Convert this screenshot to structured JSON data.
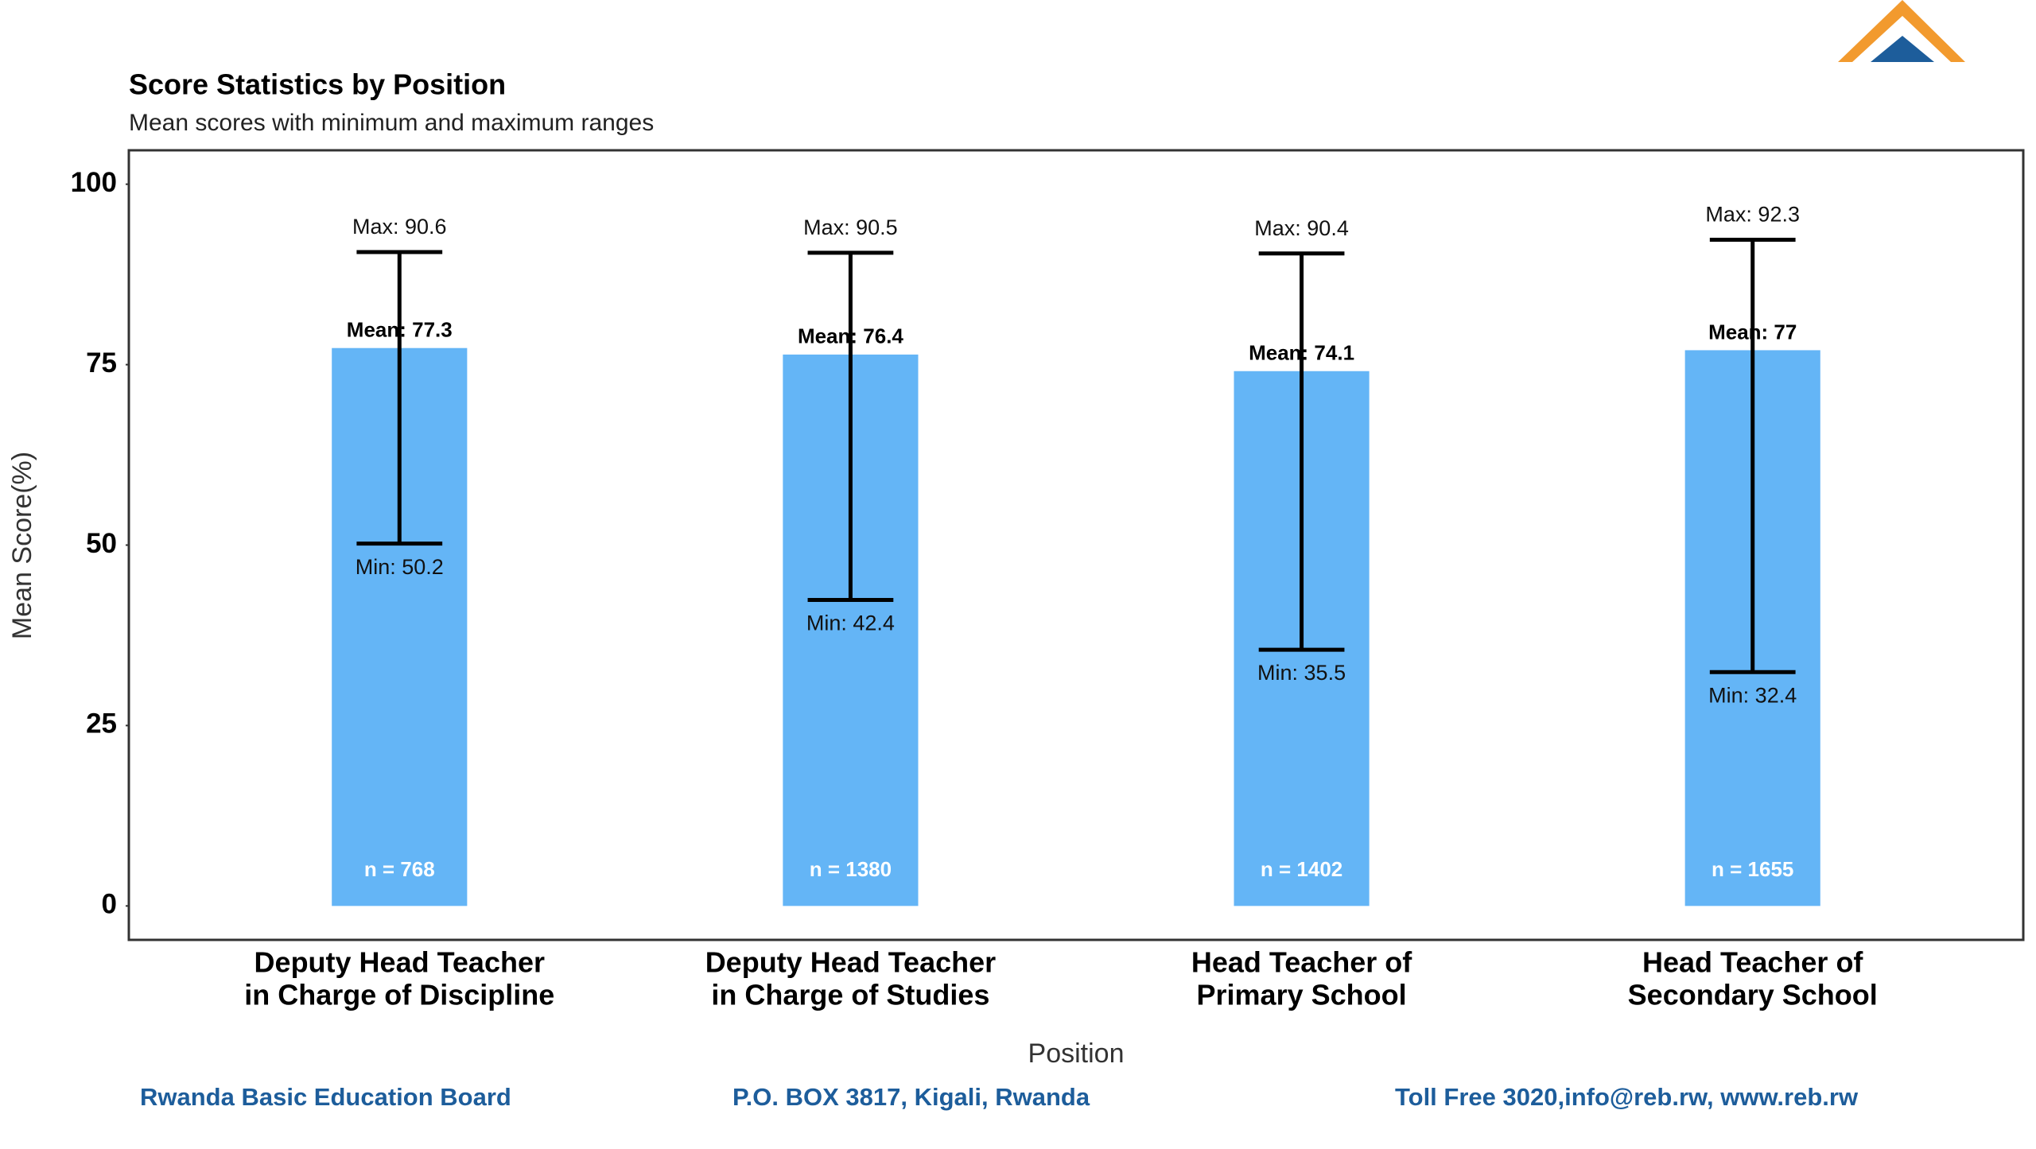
{
  "chart_data": {
    "type": "bar",
    "title": "Score Statistics by Position",
    "subtitle": "Mean scores with minimum and maximum ranges",
    "x_label": "Position",
    "y_label": "Mean Score(%)",
    "categories": [
      [
        "Deputy Head Teacher",
        "in Charge of Discipline"
      ],
      [
        "Deputy Head Teacher",
        "in Charge of Studies"
      ],
      [
        "Head Teacher of",
        "Primary School"
      ],
      [
        "Head Teacher of",
        "Secondary School"
      ]
    ],
    "values": [
      77.3,
      76.4,
      74.1,
      77
    ],
    "value_labels": [
      "Mean: 77.3",
      "Mean: 76.4",
      "Mean: 74.1",
      "Mean: 77"
    ],
    "min": [
      50.2,
      42.4,
      35.5,
      32.4
    ],
    "min_labels": [
      "Min: 50.2",
      "Min: 42.4",
      "Min: 35.5",
      "Min: 32.4"
    ],
    "max": [
      90.6,
      90.5,
      90.4,
      92.3
    ],
    "max_labels": [
      "Max: 90.6",
      "Max: 90.5",
      "Max: 90.4",
      "Max: 92.3"
    ],
    "counts": [
      768,
      1380,
      1402,
      1655
    ],
    "count_labels": [
      "n = 768",
      "n = 1380",
      "n = 1402",
      "n = 1655"
    ],
    "color": "#64b5f6",
    "ylim": [
      -4.7,
      104.7
    ],
    "yticks": [
      0,
      25,
      50,
      75,
      100
    ],
    "grid": false
  },
  "footer": {
    "organization": "Rwanda Basic Education Board",
    "address": "P.O. BOX 3817, Kigali, Rwanda",
    "contact": "Toll Free 3020,info@reb.rw, www.reb.rw"
  }
}
